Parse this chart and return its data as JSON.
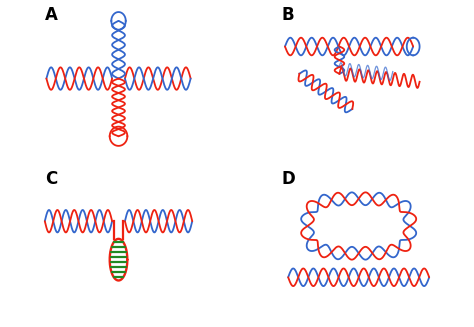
{
  "blue_color": "#3366CC",
  "red_color": "#EE2211",
  "green_color": "#228822",
  "lw": 1.3,
  "label_fontsize": 12,
  "label_fontweight": "bold",
  "background": "#FFFFFF",
  "border_color": "#888888",
  "labels": [
    "A",
    "B",
    "C",
    "D"
  ]
}
